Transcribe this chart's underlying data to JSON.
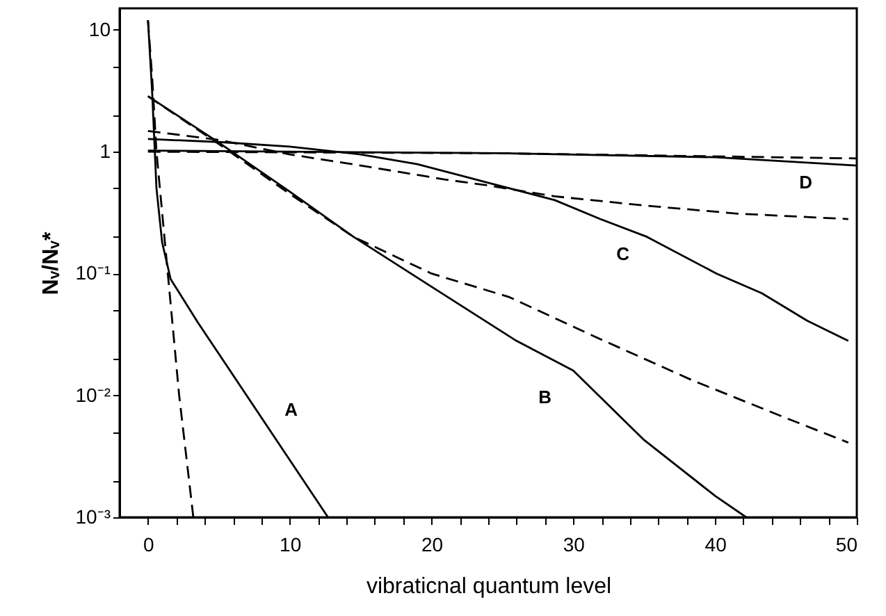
{
  "chart_data": {
    "type": "line",
    "xlabel": "vibraticnal quantum level",
    "ylabel": "Nᵥ/Nᵥ*",
    "log": "y",
    "marker": "none",
    "xlim": [
      -2,
      50
    ],
    "ylim": [
      0.001,
      15
    ],
    "xticks": [
      0,
      {
        "value": 2,
        "label": null
      },
      {
        "value": 4,
        "label": null
      },
      {
        "value": 6,
        "label": null
      },
      {
        "value": 8,
        "label": null
      },
      10,
      {
        "value": 12,
        "label": null
      },
      {
        "value": 14,
        "label": null
      },
      {
        "value": 16,
        "label": null
      },
      {
        "value": 18,
        "label": null
      },
      20,
      {
        "value": 22,
        "label": null
      },
      {
        "value": 24,
        "label": null
      },
      {
        "value": 26,
        "label": null
      },
      {
        "value": 28,
        "label": null
      },
      30,
      {
        "value": 32,
        "label": null
      },
      {
        "value": 34,
        "label": null
      },
      {
        "value": 36,
        "label": null
      },
      {
        "value": 38,
        "label": null
      },
      40,
      {
        "value": 42,
        "label": null
      },
      {
        "value": 44,
        "label": null
      },
      {
        "value": 46,
        "label": null
      },
      {
        "value": 48,
        "label": null
      },
      50
    ],
    "yticks": [
      {
        "value": 0.001,
        "label": "10⁻³"
      },
      {
        "value": 0.002,
        "label": null
      },
      {
        "value": 0.005,
        "label": null
      },
      {
        "value": 0.01,
        "label": "10⁻²"
      },
      {
        "value": 0.02,
        "label": null
      },
      {
        "value": 0.05,
        "label": null
      },
      {
        "value": 0.1,
        "label": "10⁻¹"
      },
      {
        "value": 0.2,
        "label": null
      },
      {
        "value": 0.5,
        "label": null
      },
      1,
      {
        "value": 2,
        "label": null
      },
      {
        "value": 5,
        "label": null
      },
      10
    ],
    "series": [
      {
        "color": "#000000",
        "line_style": "solid",
        "x": [
          0,
          0.3,
          0.6,
          1,
          1.6,
          3.5,
          12.7
        ],
        "values": [
          12,
          3,
          0.5,
          0.18,
          0.09,
          0.04,
          0.001
        ]
      },
      {
        "color": "#000000",
        "line_style": "dashed",
        "x": [
          0,
          0.3,
          0.6,
          1.4,
          2.2,
          3.2
        ],
        "values": [
          12,
          4,
          1,
          0.1,
          0.01,
          0.001
        ]
      },
      {
        "color": "#000000",
        "line_style": "solid",
        "x": [
          0,
          4.8,
          10,
          14.5,
          20,
          26,
          30,
          35,
          40,
          42.2
        ],
        "values": [
          2.85,
          1.23,
          0.47,
          0.2,
          0.078,
          0.028,
          0.016,
          0.0043,
          0.0015,
          0.001
        ]
      },
      {
        "color": "#000000",
        "line_style": "dashed",
        "x": [
          0,
          4.8,
          10,
          14.5,
          20,
          25.5,
          31.9,
          38.4,
          44.9,
          49.4
        ],
        "values": [
          2.85,
          1.2,
          0.45,
          0.2,
          0.1,
          0.064,
          0.029,
          0.0133,
          0.0066,
          0.0041
        ]
      },
      {
        "color": "#000000",
        "line_style": "solid",
        "x": [
          0,
          5,
          10,
          15,
          19,
          23.9,
          28.7,
          31.9,
          35.2,
          40.1,
          43.3,
          46.5,
          49.4
        ],
        "values": [
          1.27,
          1.2,
          1.1,
          0.95,
          0.79,
          0.56,
          0.4,
          0.28,
          0.2,
          0.1,
          0.069,
          0.041,
          0.028
        ]
      },
      {
        "color": "#000000",
        "line_style": "dashed",
        "x": [
          0,
          5,
          10,
          15,
          21,
          23.9,
          28.7,
          35.2,
          41.6,
          49.4
        ],
        "values": [
          1.48,
          1.25,
          0.95,
          0.77,
          0.59,
          0.53,
          0.43,
          0.36,
          0.31,
          0.28
        ]
      },
      {
        "color": "#000000",
        "line_style": "solid",
        "x": [
          0,
          25,
          40,
          50
        ],
        "values": [
          1.02,
          0.97,
          0.9,
          0.77
        ]
      },
      {
        "color": "#000000",
        "line_style": "dashed",
        "x": [
          0,
          25,
          50
        ],
        "values": [
          1.0,
          0.97,
          0.88
        ]
      }
    ],
    "annotations": [
      "A",
      "B",
      "C",
      "D"
    ]
  }
}
